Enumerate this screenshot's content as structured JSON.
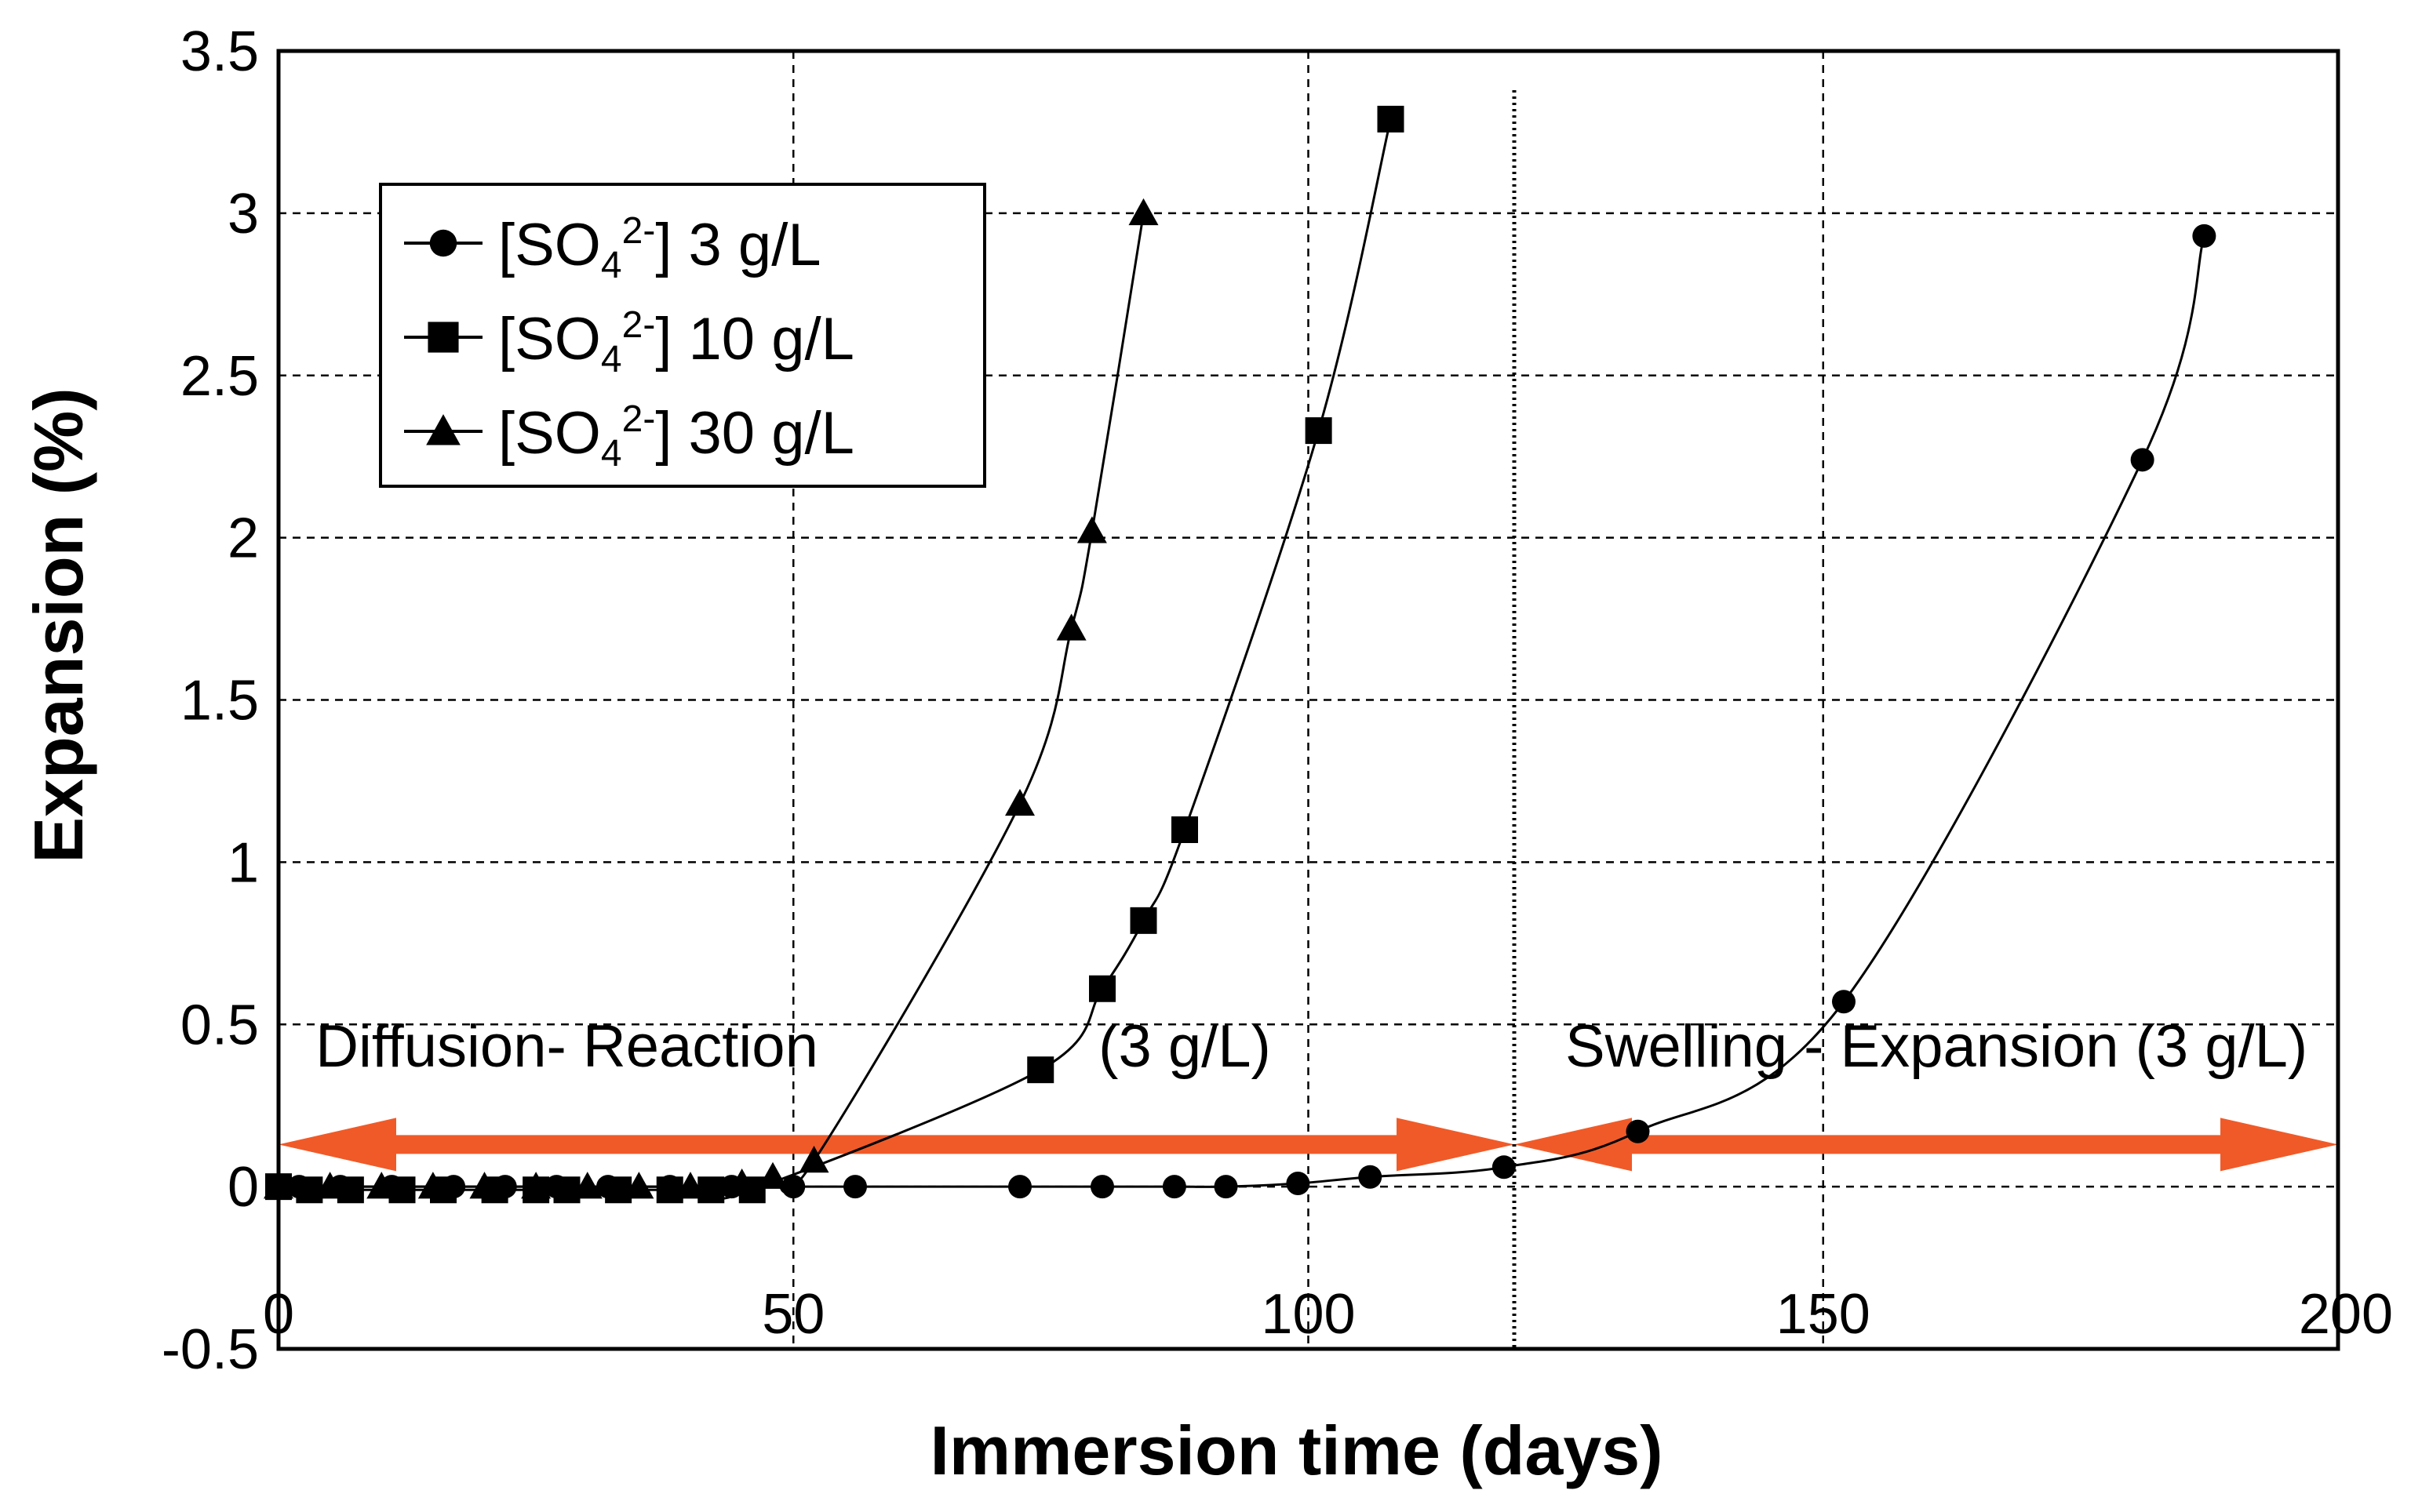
{
  "chart_data": {
    "type": "line",
    "title": "",
    "xlabel": "Immersion time (days)",
    "ylabel": "Expansion (%)",
    "xlim": [
      0,
      200
    ],
    "ylim": [
      -0.5,
      3.5
    ],
    "xticks": [
      0,
      50,
      100,
      150,
      200
    ],
    "yticks": [
      -0.5,
      0,
      0.5,
      1,
      1.5,
      2,
      2.5,
      3,
      3.5
    ],
    "grid": true,
    "legend_position": "top-left",
    "series": [
      {
        "name": "3 g/L",
        "legend_prefix": "[SO",
        "legend_sub": "4",
        "legend_sup": "2-",
        "legend_suffix": "] 3 g/L",
        "marker": "circle",
        "x": [
          0,
          2,
          6,
          11,
          17,
          22,
          27,
          32,
          38,
          44,
          50,
          56,
          72,
          80,
          87,
          92,
          99,
          106,
          119,
          132,
          152,
          181,
          187
        ],
        "y": [
          0,
          0,
          0,
          0,
          0,
          0,
          0,
          0,
          0,
          0,
          0,
          0,
          0,
          0,
          0,
          0,
          0.01,
          0.03,
          0.06,
          0.17,
          0.57,
          2.24,
          2.93
        ]
      },
      {
        "name": "10 g/L",
        "legend_prefix": "[SO",
        "legend_sub": "4",
        "legend_sup": "2-",
        "legend_suffix": "] 10 g/L",
        "marker": "square",
        "x": [
          0,
          3,
          7,
          12,
          16,
          21,
          25,
          28,
          33,
          38,
          42,
          46,
          74,
          80,
          84,
          88,
          101,
          108
        ],
        "y": [
          0,
          -0.01,
          -0.01,
          -0.01,
          -0.01,
          -0.01,
          -0.01,
          -0.01,
          -0.01,
          -0.01,
          -0.01,
          -0.01,
          0.36,
          0.61,
          0.82,
          1.1,
          2.33,
          3.29
        ],
        "smooth": true
      },
      {
        "name": "30 g/L",
        "legend_prefix": "[SO",
        "legend_sub": "4",
        "legend_sup": "2-",
        "legend_suffix": "] 30 g/L",
        "marker": "triangle",
        "x": [
          0,
          5,
          10,
          15,
          20,
          25,
          30,
          35,
          40,
          45,
          48,
          52,
          72,
          77,
          79,
          84
        ],
        "y": [
          0,
          0,
          0,
          0,
          0,
          0,
          0,
          0,
          0,
          0.01,
          0.03,
          0.08,
          1.18,
          1.72,
          2.02,
          3.0
        ]
      }
    ],
    "vertical_line": {
      "x": 120,
      "style": "dotted"
    },
    "annotations": [
      {
        "text": "Diffusion- Reaction",
        "x": 28,
        "y": 0.37
      },
      {
        "text": "(3 g/L)",
        "x": 88,
        "y": 0.37
      },
      {
        "text": "Swelling - Expansion (3 g/L)",
        "x": 161,
        "y": 0.37
      }
    ],
    "arrows": [
      {
        "x_from": 0,
        "x_to": 120,
        "y": 0.13,
        "double_headed": true,
        "color": "#F05A28"
      },
      {
        "x_from": 120,
        "x_to": 200,
        "y": 0.13,
        "double_headed": true,
        "color": "#F05A28"
      }
    ]
  }
}
